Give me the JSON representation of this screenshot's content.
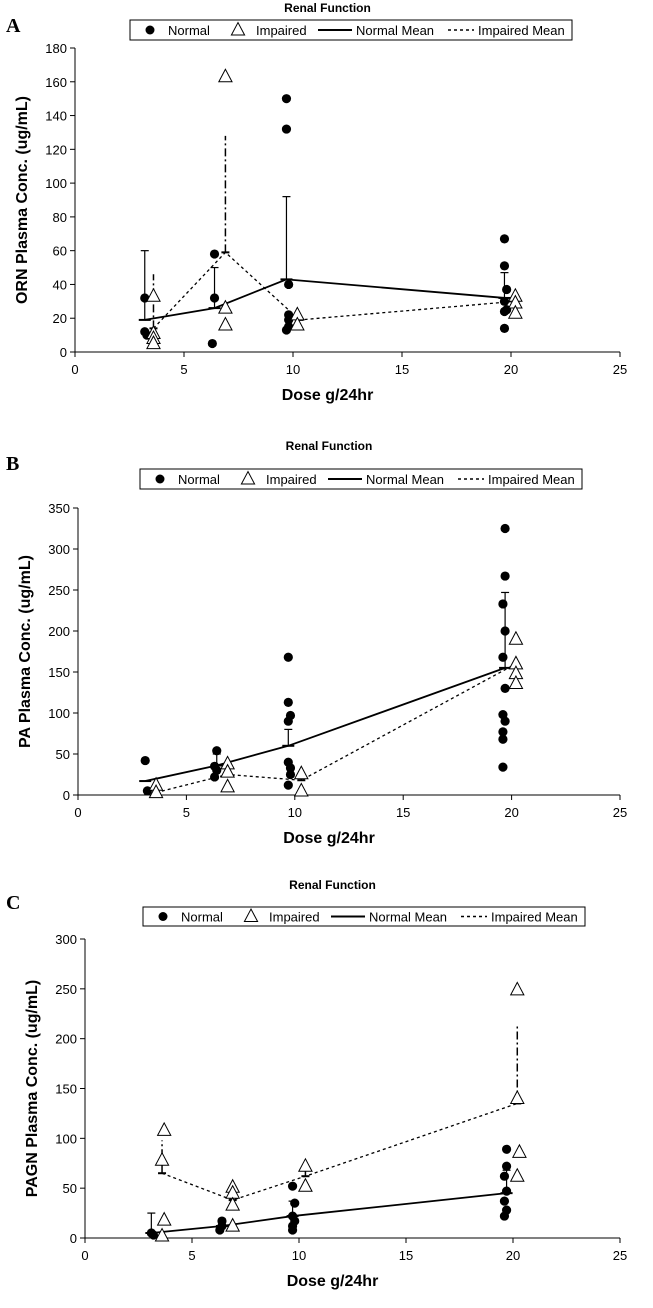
{
  "chart_data": [
    {
      "panel": "A",
      "type": "scatter",
      "title": "Renal Function",
      "xlabel": "Dose g/24hr",
      "ylabel": "ORN Plasma Conc. (ug/mL)",
      "xlim": [
        0,
        25
      ],
      "ylim": [
        0,
        180
      ],
      "xticks": [
        0,
        5,
        10,
        15,
        20,
        25
      ],
      "yticks": [
        0,
        20,
        40,
        60,
        80,
        100,
        120,
        140,
        160,
        180
      ],
      "legend": [
        "Normal",
        "Impaired",
        "Normal Mean",
        "Impaired Mean"
      ],
      "legend_position": "top",
      "normal_points": [
        [
          3.2,
          32
        ],
        [
          3.2,
          12
        ],
        [
          3.3,
          10
        ],
        [
          6.4,
          58
        ],
        [
          6.4,
          32
        ],
        [
          6.3,
          5
        ],
        [
          9.7,
          150
        ],
        [
          9.7,
          132
        ],
        [
          9.8,
          40
        ],
        [
          9.8,
          22
        ],
        [
          9.8,
          19
        ],
        [
          9.8,
          15
        ],
        [
          9.7,
          13
        ],
        [
          19.7,
          67
        ],
        [
          19.7,
          51
        ],
        [
          19.8,
          37
        ],
        [
          19.7,
          30
        ],
        [
          19.8,
          25
        ],
        [
          19.7,
          24
        ],
        [
          19.7,
          14
        ]
      ],
      "impaired_points": [
        [
          3.6,
          33
        ],
        [
          3.6,
          11
        ],
        [
          3.6,
          8
        ],
        [
          3.6,
          5
        ],
        [
          6.9,
          163
        ],
        [
          6.9,
          26
        ],
        [
          6.9,
          16
        ],
        [
          10.2,
          22
        ],
        [
          10.2,
          16
        ],
        [
          20.2,
          33
        ],
        [
          20.2,
          29
        ],
        [
          20.2,
          23
        ]
      ],
      "normal_mean": {
        "x": [
          3.2,
          6.4,
          9.7,
          19.7
        ],
        "y": [
          19,
          26,
          43,
          32
        ],
        "err_high": [
          60,
          50,
          92,
          47
        ]
      },
      "impaired_mean": {
        "x": [
          3.6,
          6.9,
          10.3,
          20.2
        ],
        "y": [
          14,
          59,
          19,
          30
        ],
        "err_high": [
          46,
          128,
          19,
          36
        ]
      }
    },
    {
      "panel": "B",
      "type": "scatter",
      "title": "Renal Function",
      "xlabel": "Dose g/24hr",
      "ylabel": "PA Plasma Conc. (ug/mL)",
      "xlim": [
        0,
        25
      ],
      "ylim": [
        0,
        350
      ],
      "xticks": [
        0,
        5,
        10,
        15,
        20,
        25
      ],
      "yticks": [
        0,
        50,
        100,
        150,
        200,
        250,
        300,
        350
      ],
      "legend": [
        "Normal",
        "Impaired",
        "Normal Mean",
        "Impaired Mean"
      ],
      "legend_position": "top",
      "normal_points": [
        [
          3.1,
          42
        ],
        [
          3.2,
          5
        ],
        [
          6.4,
          54
        ],
        [
          6.3,
          35
        ],
        [
          6.4,
          30
        ],
        [
          6.3,
          22
        ],
        [
          9.7,
          168
        ],
        [
          9.7,
          113
        ],
        [
          9.8,
          97
        ],
        [
          9.7,
          90
        ],
        [
          9.7,
          40
        ],
        [
          9.8,
          33
        ],
        [
          9.8,
          25
        ],
        [
          9.7,
          12
        ],
        [
          19.7,
          325
        ],
        [
          19.7,
          267
        ],
        [
          19.6,
          233
        ],
        [
          19.7,
          200
        ],
        [
          19.6,
          168
        ],
        [
          19.7,
          130
        ],
        [
          19.6,
          98
        ],
        [
          19.7,
          90
        ],
        [
          19.6,
          77
        ],
        [
          19.6,
          68
        ],
        [
          19.6,
          34
        ]
      ],
      "impaired_points": [
        [
          3.6,
          12
        ],
        [
          3.6,
          3
        ],
        [
          6.9,
          38
        ],
        [
          6.9,
          28
        ],
        [
          6.9,
          10
        ],
        [
          10.3,
          26
        ],
        [
          10.3,
          5
        ],
        [
          20.2,
          190
        ],
        [
          20.2,
          160
        ],
        [
          20.2,
          148
        ],
        [
          20.2,
          136
        ]
      ],
      "normal_mean": {
        "x": [
          3.1,
          6.4,
          9.7,
          19.7
        ],
        "y": [
          17,
          36,
          60,
          155
        ],
        "err_high": [
          17,
          50,
          80,
          247
        ]
      },
      "impaired_mean": {
        "x": [
          3.6,
          6.9,
          10.3,
          20.2
        ],
        "y": [
          3,
          25,
          18,
          160
        ],
        "err_high": [
          3,
          31,
          21,
          160
        ]
      }
    },
    {
      "panel": "C",
      "type": "scatter",
      "title": "Renal Function",
      "xlabel": "Dose g/24hr",
      "ylabel": "PAGN Plasma Conc. (ug/mL)",
      "xlim": [
        0,
        25
      ],
      "ylim": [
        0,
        300
      ],
      "xticks": [
        0,
        5,
        10,
        15,
        20,
        25
      ],
      "yticks": [
        0,
        50,
        100,
        150,
        200,
        250,
        300
      ],
      "legend": [
        "Normal",
        "Impaired",
        "Normal Mean",
        "Impaired Mean"
      ],
      "legend_position": "top",
      "normal_points": [
        [
          3.1,
          5
        ],
        [
          3.2,
          3
        ],
        [
          6.4,
          17
        ],
        [
          6.4,
          12
        ],
        [
          6.3,
          8
        ],
        [
          9.7,
          52
        ],
        [
          9.8,
          35
        ],
        [
          9.7,
          22
        ],
        [
          9.8,
          17
        ],
        [
          9.7,
          12
        ],
        [
          9.7,
          8
        ],
        [
          19.7,
          89
        ],
        [
          19.7,
          72
        ],
        [
          19.6,
          62
        ],
        [
          19.7,
          47
        ],
        [
          19.6,
          37
        ],
        [
          19.7,
          28
        ],
        [
          19.6,
          22
        ]
      ],
      "impaired_points": [
        [
          3.7,
          108
        ],
        [
          3.6,
          78
        ],
        [
          3.7,
          18
        ],
        [
          3.6,
          2
        ],
        [
          6.9,
          51
        ],
        [
          6.9,
          45
        ],
        [
          6.9,
          33
        ],
        [
          6.9,
          12
        ],
        [
          10.3,
          72
        ],
        [
          10.3,
          52
        ],
        [
          20.2,
          249
        ],
        [
          20.2,
          140
        ],
        [
          20.3,
          86
        ],
        [
          20.2,
          62
        ]
      ],
      "normal_mean": {
        "x": [
          3.1,
          6.4,
          9.7,
          19.7
        ],
        "y": [
          5,
          12,
          22,
          45
        ],
        "err_high": [
          25,
          19,
          37,
          68
        ]
      },
      "impaired_mean": {
        "x": [
          3.6,
          6.9,
          10.3,
          20.2
        ],
        "y": [
          65,
          38,
          62,
          135
        ],
        "err_high": [
          98,
          48,
          70,
          215
        ]
      }
    }
  ]
}
